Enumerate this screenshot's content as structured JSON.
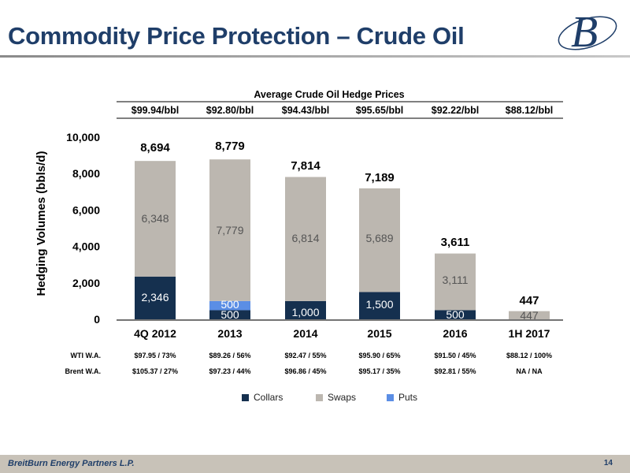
{
  "header": {
    "title": "Commodity Price Protection – Crude Oil",
    "logo_text": "B"
  },
  "footer": {
    "company": "BreitBurn Energy Partners L.P.",
    "page_number": "14"
  },
  "colors": {
    "collars": "#15304f",
    "swaps": "#bcb7b0",
    "puts": "#5b8ee5",
    "title": "#1f3e69"
  },
  "chart_data": {
    "type": "bar",
    "stacked": true,
    "title": "Average Crude Oil Hedge Prices",
    "ylabel": "Hedging Volumes (bbls/d)",
    "ylim": [
      0,
      10000
    ],
    "yticks": [
      "0",
      "2,000",
      "4,000",
      "6,000",
      "8,000",
      "10,000"
    ],
    "categories": [
      "4Q 2012",
      "2013",
      "2014",
      "2015",
      "2016",
      "1H 2017"
    ],
    "avg_prices": [
      "$99.94/bbl",
      "$92.80/bbl",
      "$94.43/bbl",
      "$95.65/bbl",
      "$92.22/bbl",
      "$88.12/bbl"
    ],
    "series": [
      {
        "name": "Collars",
        "values": [
          2346,
          500,
          1000,
          1500,
          500,
          0
        ],
        "labels": [
          "2,346",
          "500",
          "1,000",
          "1,500",
          "500",
          ""
        ]
      },
      {
        "name": "Puts",
        "values": [
          0,
          500,
          0,
          0,
          0,
          0
        ],
        "labels": [
          "",
          "500",
          "",
          "",
          "",
          ""
        ]
      },
      {
        "name": "Swaps",
        "values": [
          6348,
          7779,
          6814,
          5689,
          3111,
          447
        ],
        "labels": [
          "6,348",
          "7,779",
          "6,814",
          "5,689",
          "3,111",
          "447"
        ]
      }
    ],
    "totals": [
      "8,694",
      "8,779",
      "7,814",
      "7,189",
      "3,611",
      "447"
    ],
    "rows": [
      {
        "label": "WTI W.A.",
        "values": [
          "$97.95 / 73%",
          "$89.26 / 56%",
          "$92.47 / 55%",
          "$95.90 / 65%",
          "$91.50 / 45%",
          "$88.12 / 100%"
        ]
      },
      {
        "label": "Brent W.A.",
        "values": [
          "$105.37 / 27%",
          "$97.23 / 44%",
          "$96.86 / 45%",
          "$95.17 / 35%",
          "$92.81 / 55%",
          "NA / NA"
        ]
      }
    ],
    "legend": [
      "Collars",
      "Swaps",
      "Puts"
    ],
    "legend_position": "bottom"
  }
}
